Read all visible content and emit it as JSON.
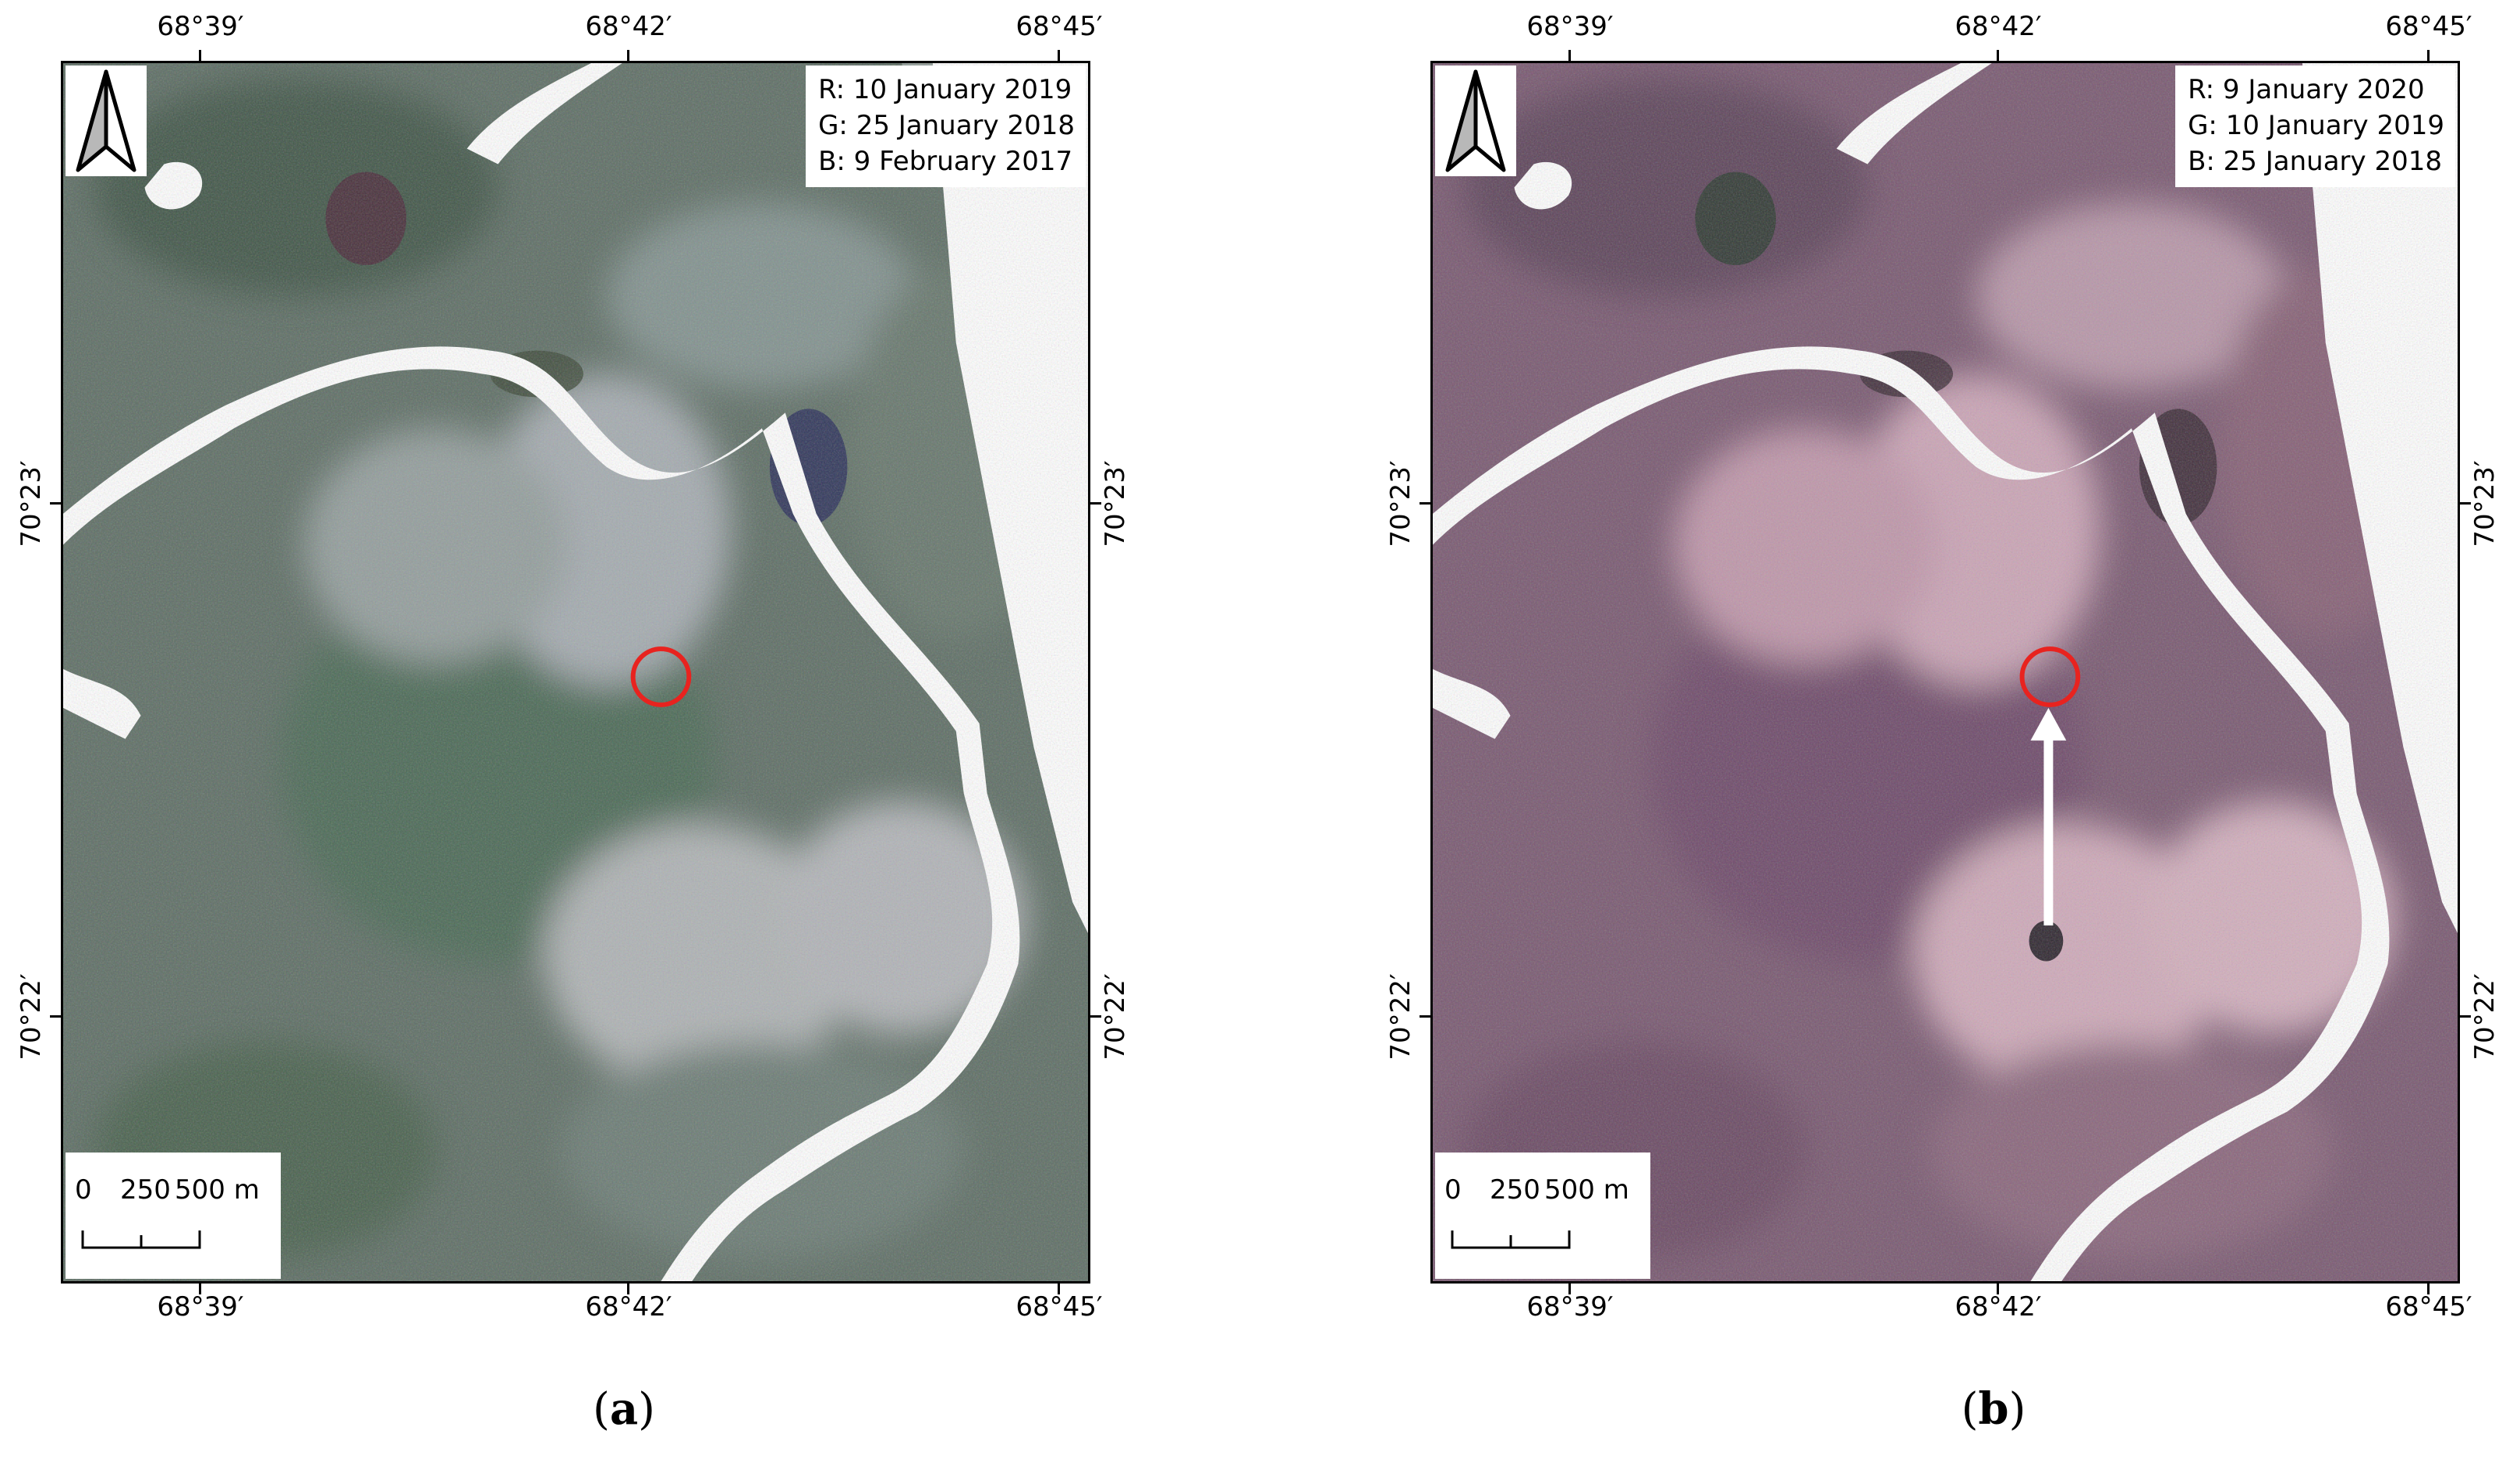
{
  "figure": {
    "panels": [
      {
        "id": "a",
        "label": "a",
        "legend": [
          "R: 10 January 2019",
          "G: 25 January 2018",
          "B: 9 February 2017"
        ],
        "longitude_labels": [
          "68°39′",
          "68°42′",
          "68°45′"
        ],
        "latitude_labels": [
          "70°23′",
          "70°22′"
        ],
        "scale": {
          "labels": [
            "0",
            "250",
            "500 m"
          ]
        },
        "palette": {
          "base": "#5f6f66",
          "light": "#b9bcc2",
          "dark": "#3a5240",
          "accent_dark": "#4a2a3a",
          "pond_dark": "#2a2f5a"
        },
        "markers": {
          "circle_color": "#e8231f",
          "show_arrow": false
        }
      },
      {
        "id": "b",
        "label": "b",
        "legend": [
          "R: 9 January 2020",
          "G: 10 January 2019",
          "B: 25 January 2018"
        ],
        "longitude_labels": [
          "68°39′",
          "68°42′",
          "68°45′"
        ],
        "latitude_labels": [
          "70°23′",
          "70°22′"
        ],
        "scale": {
          "labels": [
            "0",
            "250",
            "500 m"
          ]
        },
        "palette": {
          "base": "#7a5a72",
          "light": "#d9b2c2",
          "dark": "#4c3550",
          "accent_dark": "#2c3a30",
          "pond_dark": "#3a2a35"
        },
        "markers": {
          "circle_color": "#e8231f",
          "show_arrow": true,
          "arrow_color": "#ffffff"
        }
      }
    ]
  }
}
